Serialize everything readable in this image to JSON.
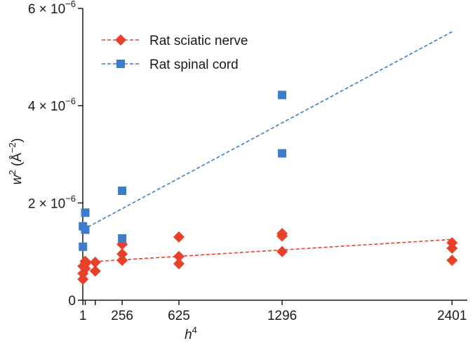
{
  "chart_data": {
    "type": "scatter",
    "xlabel": {
      "base": "h",
      "sup": "4"
    },
    "ylabel": {
      "base": "w",
      "sup": "2",
      "unit": " (Å",
      "unit_sup": "−2",
      "close": ")"
    },
    "xlim": [
      0,
      2500
    ],
    "ylim": [
      0,
      6e-06
    ],
    "xticks": [
      {
        "value": 1,
        "label": "1"
      },
      {
        "value": 16,
        "label": ""
      },
      {
        "value": 81,
        "label": ""
      },
      {
        "value": 256,
        "label": "256"
      },
      {
        "value": 625,
        "label": "625"
      },
      {
        "value": 1296,
        "label": "1296"
      },
      {
        "value": 2401,
        "label": "2401"
      }
    ],
    "yticks": [
      {
        "value": 0,
        "mantissa": "0",
        "exp": ""
      },
      {
        "value": 2e-06,
        "mantissa": "2 × 10",
        "exp": "−6"
      },
      {
        "value": 4e-06,
        "mantissa": "4 × 10",
        "exp": "−6"
      },
      {
        "value": 6e-06,
        "mantissa": "6 × 10",
        "exp": "−6"
      }
    ],
    "legend_position": "top-left",
    "series": [
      {
        "name": "Rat sciatic nerve",
        "color": "#e8402a",
        "marker": "diamond",
        "points": [
          [
            1,
            4.3e-07
          ],
          [
            1,
            5.5e-07
          ],
          [
            1,
            7e-07
          ],
          [
            16,
            6.5e-07
          ],
          [
            16,
            8e-07
          ],
          [
            16,
            7.5e-07
          ],
          [
            81,
            6e-07
          ],
          [
            81,
            7.8e-07
          ],
          [
            256,
            8.2e-07
          ],
          [
            256,
            9.5e-07
          ],
          [
            256,
            1.15e-06
          ],
          [
            625,
            7.5e-07
          ],
          [
            625,
            9e-07
          ],
          [
            625,
            1.3e-06
          ],
          [
            1296,
            1e-06
          ],
          [
            1296,
            1.32e-06
          ],
          [
            1296,
            1.37e-06
          ],
          [
            2401,
            8.2e-07
          ],
          [
            2401,
            1.07e-06
          ],
          [
            2401,
            1.18e-06
          ]
        ],
        "fit": [
          [
            1,
            7.8e-07
          ],
          [
            2401,
            1.25e-06
          ]
        ]
      },
      {
        "name": "Rat spinal cord",
        "color": "#3d7cc9",
        "marker": "square",
        "points": [
          [
            1,
            1.1e-06
          ],
          [
            1,
            1.52e-06
          ],
          [
            16,
            1.45e-06
          ],
          [
            16,
            1.8e-06
          ],
          [
            256,
            1.27e-06
          ],
          [
            256,
            2.25e-06
          ],
          [
            1296,
            3.02e-06
          ],
          [
            1296,
            4.22e-06
          ]
        ],
        "fit": [
          [
            1,
            1.45e-06
          ],
          [
            2401,
            5.52e-06
          ]
        ]
      }
    ]
  }
}
